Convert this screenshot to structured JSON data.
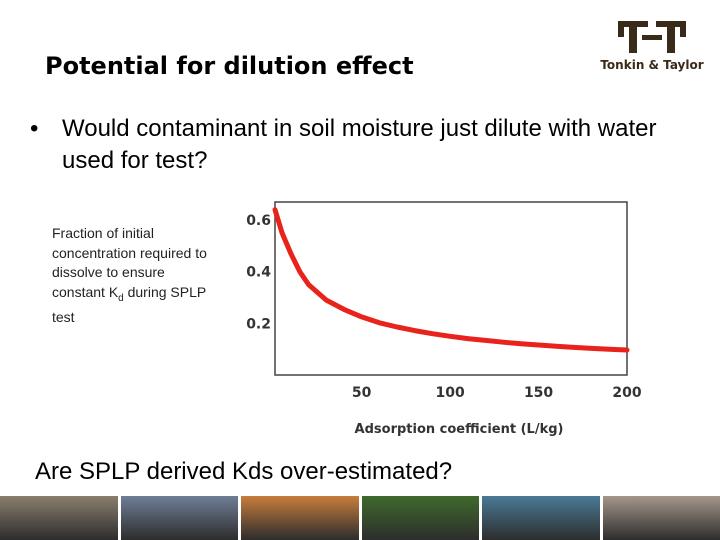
{
  "slide": {
    "title": "Potential for dilution effect",
    "bullet_symbol": "•",
    "bullet": "Would contaminant in soil moisture just dilute with water used for test?",
    "side_label": {
      "line1": "Fraction of initial",
      "line2": "concentration required to",
      "line3": "dissolve to ensure",
      "line4_pre": "constant K",
      "line4_sub": "d",
      "line4_post": " during SPLP",
      "line5": "test"
    },
    "question": "Are SPLP derived Kds over-estimated?"
  },
  "logo": {
    "name": "Tonkin & Taylor",
    "color": "#3a2a1a"
  },
  "chart_data": {
    "type": "line",
    "xlabel": "Adsorption coefficient (L/kg)",
    "ylabel": "",
    "x_ticks": [
      50,
      100,
      150,
      200
    ],
    "y_ticks": [
      0.2,
      0.4,
      0.6
    ],
    "xlim": [
      1,
      200
    ],
    "ylim": [
      0.0,
      0.67
    ],
    "grid": false,
    "series": [
      {
        "color": "#e8231b",
        "x": [
          1,
          5,
          10,
          15,
          20,
          30,
          40,
          50,
          60,
          70,
          80,
          90,
          100,
          110,
          120,
          130,
          140,
          150,
          160,
          170,
          180,
          190,
          200
        ],
        "y": [
          0.64,
          0.55,
          0.47,
          0.4,
          0.35,
          0.29,
          0.254,
          0.225,
          0.202,
          0.186,
          0.172,
          0.16,
          0.15,
          0.141,
          0.134,
          0.127,
          0.121,
          0.116,
          0.111,
          0.107,
          0.103,
          0.1,
          0.097
        ]
      }
    ]
  },
  "footer_strip": {
    "colors": [
      "#8a7f6e",
      "#6f7e96",
      "#c77d3c",
      "#3f6a2c",
      "#4a7a96",
      "#a5968a"
    ]
  }
}
